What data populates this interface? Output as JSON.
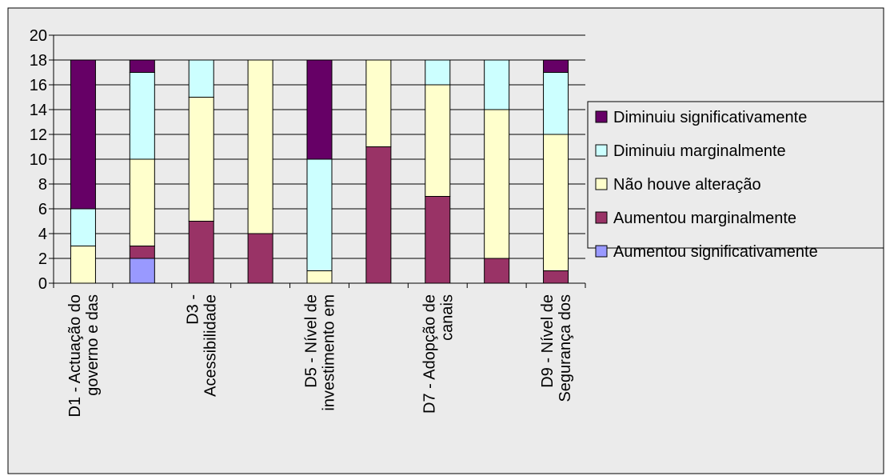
{
  "chart_data": {
    "type": "bar",
    "stacked": true,
    "categories": [
      [
        "D1 - Actuação do",
        "governo e das"
      ],
      [
        "",
        ""
      ],
      [
        "D3 -",
        "Acessibilidade"
      ],
      [
        "",
        ""
      ],
      [
        "D5 - Nível de",
        "investimento em"
      ],
      [
        "",
        ""
      ],
      [
        "D7 - Adopção de",
        "canais"
      ],
      [
        "",
        ""
      ],
      [
        "D9 - Nível de",
        "Segurança dos"
      ]
    ],
    "series": [
      {
        "name": "Aumentou significativamente",
        "color": "#9999FF",
        "values": [
          0,
          2,
          0,
          0,
          0,
          0,
          0,
          0,
          0
        ]
      },
      {
        "name": "Aumentou marginalmente",
        "color": "#993366",
        "values": [
          0,
          1,
          5,
          4,
          0,
          11,
          7,
          2,
          1
        ]
      },
      {
        "name": "Não houve alteração",
        "color": "#FFFFCC",
        "values": [
          3,
          7,
          10,
          14,
          1,
          7,
          9,
          12,
          11
        ]
      },
      {
        "name": "Diminuiu marginalmente",
        "color": "#CCFFFF",
        "values": [
          3,
          7,
          3,
          0,
          9,
          0,
          2,
          4,
          5
        ]
      },
      {
        "name": "Diminuiu significativamente",
        "color": "#660066",
        "values": [
          12,
          1,
          0,
          0,
          8,
          0,
          0,
          0,
          1
        ]
      }
    ],
    "legend_order": [
      "Diminuiu significativamente",
      "Diminuiu marginalmente",
      "Não houve alteração",
      "Aumentou marginalmente",
      "Aumentou significativamente"
    ],
    "legend_position": "right",
    "ylim": [
      0,
      20
    ],
    "yticks": [
      "0",
      "2",
      "4",
      "6",
      "8",
      "10",
      "12",
      "14",
      "16",
      "18",
      "20"
    ],
    "grid": true,
    "plot_background": "#EBEBEB"
  }
}
